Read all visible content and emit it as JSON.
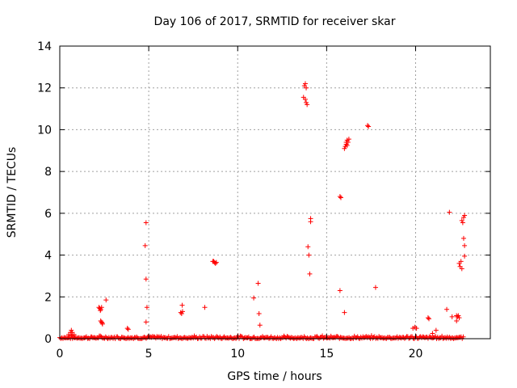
{
  "chart_data": {
    "type": "scatter",
    "title": "Day 106 of 2017, SRMTID for receiver skar",
    "xlabel": "GPS time / hours",
    "ylabel": "SRMTID / TECUs",
    "xlim": [
      0,
      24.2
    ],
    "ylim": [
      0,
      14
    ],
    "x_ticks": [
      0,
      5,
      10,
      15,
      20
    ],
    "y_ticks": [
      0,
      2,
      4,
      6,
      8,
      10,
      12,
      14
    ],
    "grid": true,
    "marker": "+",
    "series": [
      {
        "color": "#ff0000",
        "baseline": {
          "x_range": [
            0,
            22.7
          ],
          "y_range": [
            0,
            0.15
          ]
        },
        "points": [
          [
            0.5,
            0.2
          ],
          [
            0.6,
            0.3
          ],
          [
            0.65,
            0.4
          ],
          [
            0.7,
            0.3
          ],
          [
            0.8,
            0.2
          ],
          [
            0.7,
            0.15
          ],
          [
            2.2,
            1.5
          ],
          [
            2.25,
            1.45
          ],
          [
            2.3,
            1.4
          ],
          [
            2.35,
            1.5
          ],
          [
            2.28,
            1.35
          ],
          [
            2.3,
            0.85
          ],
          [
            2.35,
            0.8
          ],
          [
            2.4,
            0.7
          ],
          [
            2.38,
            0.75
          ],
          [
            2.6,
            1.85
          ],
          [
            3.8,
            0.5
          ],
          [
            3.85,
            0.45
          ],
          [
            4.85,
            5.55
          ],
          [
            4.8,
            4.45
          ],
          [
            4.85,
            2.85
          ],
          [
            4.9,
            1.5
          ],
          [
            4.85,
            0.8
          ],
          [
            6.8,
            1.25
          ],
          [
            6.9,
            1.3
          ],
          [
            6.85,
            1.2
          ],
          [
            6.88,
            1.6
          ],
          [
            8.15,
            1.5
          ],
          [
            8.6,
            3.7
          ],
          [
            8.7,
            3.65
          ],
          [
            8.75,
            3.6
          ],
          [
            8.8,
            3.65
          ],
          [
            8.65,
            3.7
          ],
          [
            10.9,
            1.95
          ],
          [
            11.15,
            2.65
          ],
          [
            11.2,
            1.2
          ],
          [
            11.25,
            0.65
          ],
          [
            13.75,
            12.1
          ],
          [
            13.8,
            12.2
          ],
          [
            13.85,
            12.0
          ],
          [
            13.7,
            11.55
          ],
          [
            13.8,
            11.45
          ],
          [
            13.85,
            11.3
          ],
          [
            13.9,
            11.2
          ],
          [
            13.95,
            4.4
          ],
          [
            14.0,
            4.0
          ],
          [
            14.05,
            3.1
          ],
          [
            14.1,
            5.6
          ],
          [
            14.1,
            5.75
          ],
          [
            15.75,
            6.8
          ],
          [
            15.8,
            6.75
          ],
          [
            15.75,
            2.3
          ],
          [
            16.0,
            9.1
          ],
          [
            16.05,
            9.2
          ],
          [
            16.1,
            9.3
          ],
          [
            16.1,
            9.4
          ],
          [
            16.15,
            9.5
          ],
          [
            16.2,
            9.4
          ],
          [
            16.25,
            9.55
          ],
          [
            16.15,
            9.25
          ],
          [
            16.0,
            1.25
          ],
          [
            17.3,
            10.2
          ],
          [
            17.35,
            10.15
          ],
          [
            17.75,
            2.45
          ],
          [
            19.85,
            0.5
          ],
          [
            19.95,
            0.55
          ],
          [
            20.05,
            0.5
          ],
          [
            20.7,
            1.0
          ],
          [
            20.75,
            0.95
          ],
          [
            21.15,
            0.4
          ],
          [
            20.95,
            0.25
          ],
          [
            21.75,
            1.4
          ],
          [
            21.9,
            6.05
          ],
          [
            22.05,
            1.05
          ],
          [
            22.3,
            1.1
          ],
          [
            22.35,
            1.05
          ],
          [
            22.4,
            1.1
          ],
          [
            22.45,
            1.0
          ],
          [
            22.3,
            0.85
          ],
          [
            22.45,
            3.6
          ],
          [
            22.5,
            3.45
          ],
          [
            22.55,
            3.7
          ],
          [
            22.6,
            3.35
          ],
          [
            22.6,
            5.65
          ],
          [
            22.65,
            5.55
          ],
          [
            22.7,
            5.8
          ],
          [
            22.75,
            5.9
          ],
          [
            22.7,
            4.8
          ],
          [
            22.75,
            4.45
          ],
          [
            22.75,
            3.95
          ]
        ]
      }
    ]
  }
}
